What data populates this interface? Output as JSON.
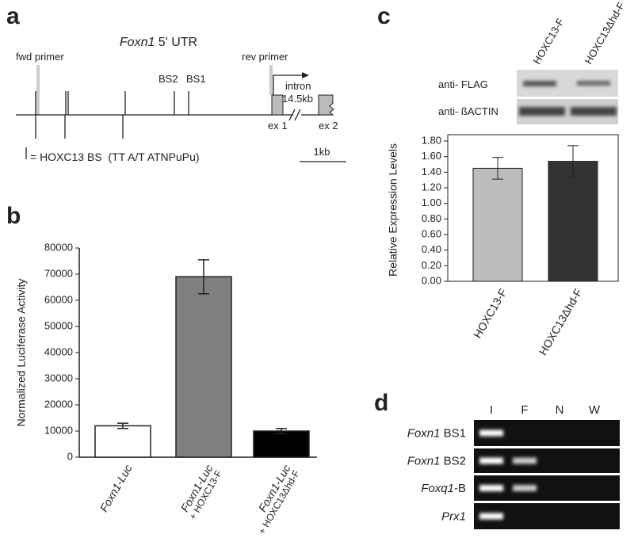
{
  "panel_a": {
    "letter": "a",
    "title_gene": "Foxn1",
    "title_rest": " 5' UTR",
    "fwd_primer": "fwd primer",
    "rev_primer": "rev primer",
    "bs2": "BS2",
    "bs1": "BS1",
    "intron": "intron",
    "intron_size": "14.5kb",
    "exon1": "ex 1",
    "exon2": "ex 2",
    "legend": "= HOXC13 BS  (TT A/T ATNPuPu)",
    "scale": "1kb"
  },
  "chart_data": [
    {
      "type": "bar",
      "letter": "b",
      "ylabel": "Normalized Luciferase Activity",
      "categories": [
        "Foxn1-Luc",
        "Foxn1-Luc",
        "Foxn1-Luc"
      ],
      "category_sublabels": [
        null,
        "+ HOXC13-F",
        "+ HOXC13Δhd-F"
      ],
      "values": [
        12000,
        69000,
        10000
      ],
      "errors": [
        1000,
        6500,
        1000
      ],
      "colors": [
        "#ffffff",
        "#808080",
        "#000000"
      ],
      "ylim": [
        0,
        80000
      ],
      "yticks": [
        0,
        10000,
        20000,
        30000,
        40000,
        50000,
        60000,
        70000,
        80000
      ]
    },
    {
      "type": "bar",
      "letter": "c",
      "ylabel": "Relative Expression Levels",
      "categories": [
        "HOXC13-F",
        "HOXC13Δhd-F"
      ],
      "values": [
        1.45,
        1.54
      ],
      "errors": [
        0.14,
        0.2
      ],
      "colors": [
        "#bdbdbd",
        "#333333"
      ],
      "ylim": [
        0,
        1.8
      ],
      "yticks": [
        {
          "value": 0,
          "label": "0.00"
        },
        {
          "value": 0.2,
          "label": "0.20"
        },
        {
          "value": 0.4,
          "label": "0.40"
        },
        {
          "value": 0.6,
          "label": "0.60"
        },
        {
          "value": 0.8,
          "label": "0.80"
        },
        {
          "value": 1,
          "label": "1.00"
        },
        {
          "value": 1.2,
          "label": "1.20"
        },
        {
          "value": 1.4,
          "label": "1.40"
        },
        {
          "value": 1.6,
          "label": "1.60"
        },
        {
          "value": 1.8,
          "label": "1.80"
        }
      ]
    }
  ],
  "panel_c_blot": {
    "lanes": [
      "HOXC13-F",
      "HOXC13Δhd-F"
    ],
    "rows": [
      "anti- FLAG",
      "anti- ßACTIN"
    ]
  },
  "panel_d": {
    "letter": "d",
    "lanes": [
      "I",
      "F",
      "N",
      "W"
    ],
    "rows": [
      {
        "gene": "Foxn1",
        "suffix": " BS1"
      },
      {
        "gene": "Foxn1",
        "suffix": " BS2"
      },
      {
        "gene": "Foxq1",
        "suffix": "-B"
      },
      {
        "gene": "Prx1"
      }
    ]
  }
}
